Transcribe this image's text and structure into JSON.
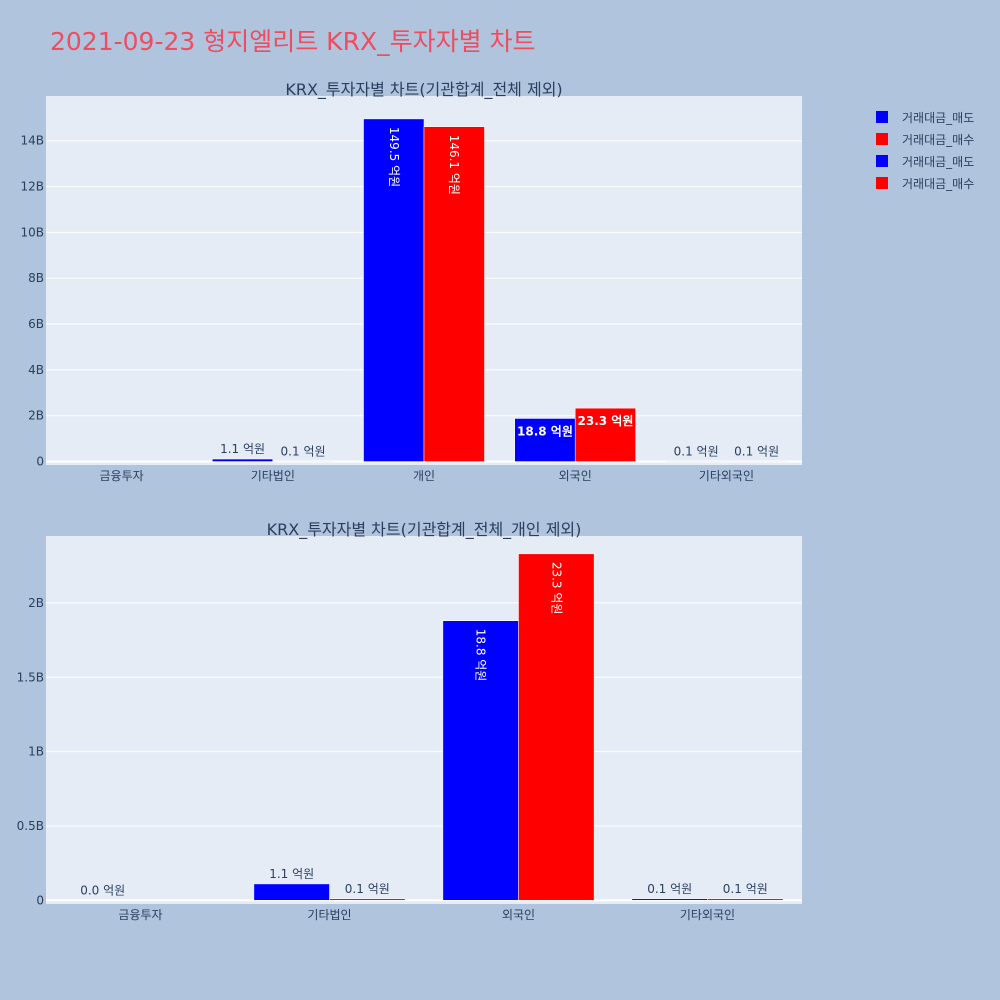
{
  "page": {
    "title": "2021-09-23 형지엘리트 KRX_투자자별 차트"
  },
  "legend": [
    {
      "label": "거래대금_매도",
      "color": "#0000ff"
    },
    {
      "label": "거래대금_매수",
      "color": "#ff0000"
    },
    {
      "label": "거래대금_매도",
      "color": "#0000ff"
    },
    {
      "label": "거래대금_매수",
      "color": "#ff0000"
    }
  ],
  "colors": {
    "plot_bg": "#e5ecf6",
    "grid": "#ffffff",
    "text": "#2a3f5f",
    "sell": "#0000ff",
    "buy": "#ff0000"
  },
  "chart_data": [
    {
      "type": "bar",
      "title": "KRX_투자자별 차트(기관합계_전체 제외)",
      "categories": [
        "금융투자",
        "기타법인",
        "개인",
        "외국인",
        "기타외국인"
      ],
      "series": [
        {
          "name": "거래대금_매도",
          "values": [
            0,
            110000000,
            14950000000,
            1880000000,
            10000000
          ],
          "labels": [
            "",
            "1.1 억원",
            "149.5 억원",
            "18.8 억원",
            "0.1 억원"
          ]
        },
        {
          "name": "거래대금_매수",
          "values": [
            0,
            10000000,
            14610000000,
            2330000000,
            10000000
          ],
          "labels": [
            "",
            "0.1 억원",
            "146.1 억원",
            "23.3 억원",
            "0.1 억원"
          ]
        }
      ],
      "ylim": [
        -150000000,
        15950000000
      ],
      "yticks": [
        0,
        2000000000,
        4000000000,
        6000000000,
        8000000000,
        10000000000,
        12000000000,
        14000000000
      ],
      "yticklabels": [
        "0",
        "2B",
        "4B",
        "6B",
        "8B",
        "10B",
        "12B",
        "14B"
      ],
      "grid": true
    },
    {
      "type": "bar",
      "title": "KRX_투자자별 차트(기관합계_전체_개인 제외)",
      "categories": [
        "금융투자",
        "기타법인",
        "외국인",
        "기타외국인"
      ],
      "series": [
        {
          "name": "거래대금_매도",
          "values": [
            0,
            110000000,
            1880000000,
            10000000
          ],
          "labels": [
            "0.0 억원",
            "1.1 억원",
            "18.8 억원",
            "0.1 억원"
          ]
        },
        {
          "name": "거래대금_매수",
          "values": [
            0,
            10000000,
            2330000000,
            10000000
          ],
          "labels": [
            "",
            "0.1 억원",
            "23.3 억원",
            "0.1 억원"
          ]
        }
      ],
      "ylim": [
        -25000000,
        2450000000
      ],
      "yticks": [
        0,
        500000000,
        1000000000,
        1500000000,
        2000000000
      ],
      "yticklabels": [
        "0",
        "0.5B",
        "1B",
        "1.5B",
        "2B"
      ],
      "grid": true
    }
  ]
}
